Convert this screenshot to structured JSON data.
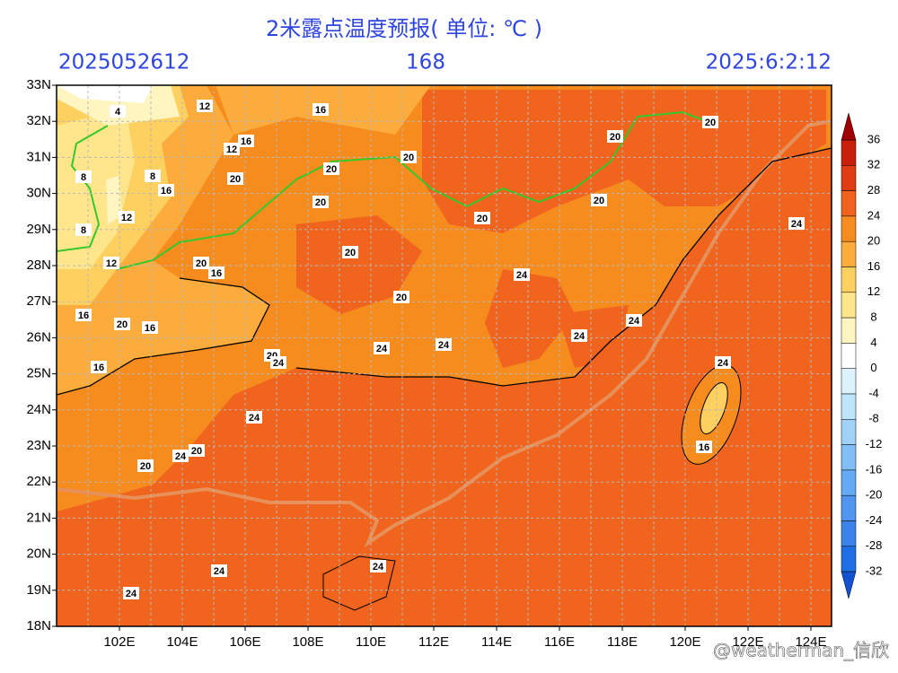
{
  "header": {
    "title": "2米露点温度预报( 单位: ℃ )",
    "init_time": "2025052612",
    "forecast_hour": "168",
    "valid_time": "2025:6:2:12"
  },
  "map": {
    "xlim": [
      100,
      124.7
    ],
    "ylim": [
      18,
      33
    ],
    "lon_ticks": [
      {
        "value": 102,
        "label": "102E"
      },
      {
        "value": 104,
        "label": "104E"
      },
      {
        "value": 106,
        "label": "106E"
      },
      {
        "value": 108,
        "label": "108E"
      },
      {
        "value": 110,
        "label": "110E"
      },
      {
        "value": 112,
        "label": "112E"
      },
      {
        "value": 114,
        "label": "114E"
      },
      {
        "value": 116,
        "label": "116E"
      },
      {
        "value": 118,
        "label": "118E"
      },
      {
        "value": 120,
        "label": "120E"
      },
      {
        "value": 122,
        "label": "122E"
      },
      {
        "value": 124,
        "label": "124E"
      }
    ],
    "lat_ticks": [
      {
        "value": 18,
        "label": "18N"
      },
      {
        "value": 19,
        "label": "19N"
      },
      {
        "value": 20,
        "label": "20N"
      },
      {
        "value": 21,
        "label": "21N"
      },
      {
        "value": 22,
        "label": "22N"
      },
      {
        "value": 23,
        "label": "23N"
      },
      {
        "value": 24,
        "label": "24N"
      },
      {
        "value": 25,
        "label": "25N"
      },
      {
        "value": 26,
        "label": "26N"
      },
      {
        "value": 27,
        "label": "27N"
      },
      {
        "value": 28,
        "label": "28N"
      },
      {
        "value": 29,
        "label": "29N"
      },
      {
        "value": 30,
        "label": "30N"
      },
      {
        "value": 31,
        "label": "31N"
      },
      {
        "value": 32,
        "label": "32N"
      },
      {
        "value": 33,
        "label": "33N"
      }
    ],
    "contour_labels": [
      12,
      16,
      4,
      12,
      16,
      20,
      20,
      8,
      8,
      16,
      20,
      20,
      20,
      12,
      8,
      20,
      20,
      20,
      24,
      12,
      20,
      16,
      20,
      24,
      20,
      16,
      20,
      16,
      24,
      24,
      24,
      24,
      20,
      24,
      16,
      24,
      24,
      16,
      20,
      24,
      20,
      24,
      24,
      24
    ]
  },
  "colorbar": {
    "levels": [
      36,
      32,
      28,
      24,
      20,
      16,
      12,
      8,
      4,
      0,
      -4,
      -8,
      -12,
      -16,
      -20,
      -24,
      -28,
      -32
    ],
    "colors": [
      "#a00000",
      "#c81e0a",
      "#e03c14",
      "#f0641e",
      "#f78c1e",
      "#fbac3c",
      "#fdd060",
      "#ffe68c",
      "#fff5c0",
      "#ffffff",
      "#dcf2fc",
      "#bee4fa",
      "#a0d2f8",
      "#82bef6",
      "#64aaf4",
      "#5096f0",
      "#3c82ec",
      "#1e6ee6",
      "#1450d2"
    ]
  },
  "watermark": "@weatherman_信欣"
}
